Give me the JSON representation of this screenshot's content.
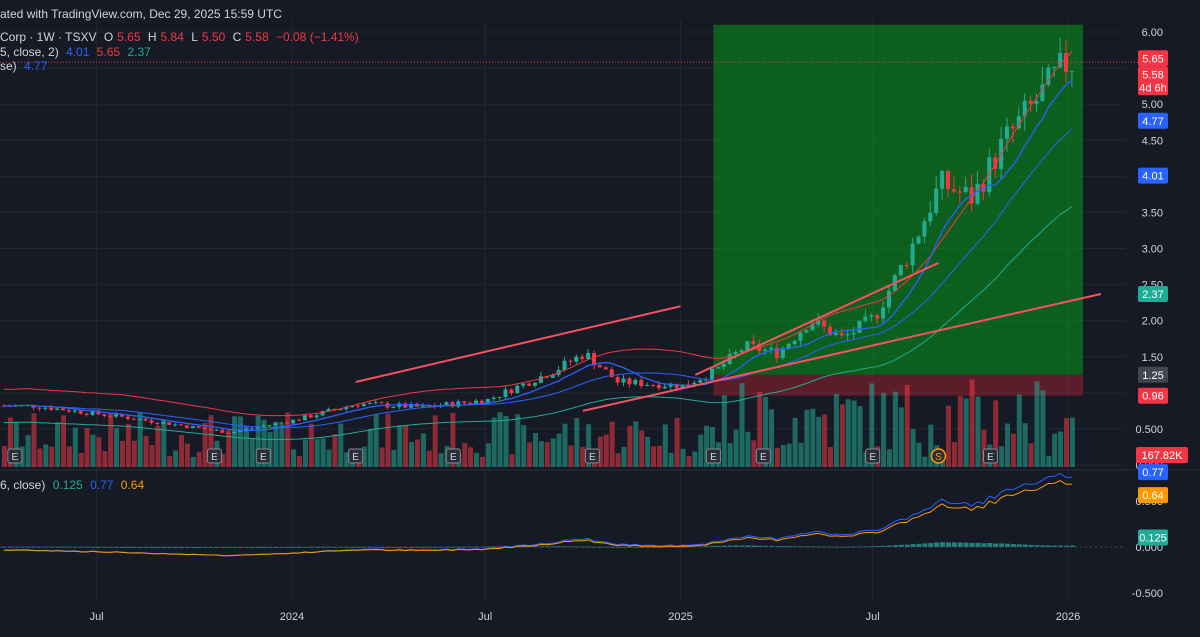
{
  "header": {
    "attribution": "ated with TradingView.com, Dec 29, 2025 15:59 UTC",
    "symbol": "Corp · 1W · TSXV",
    "open_label": "O",
    "open": "5.65",
    "high_label": "H",
    "high": "5.84",
    "low_label": "L",
    "low": "5.50",
    "close_label": "C",
    "close": "5.58",
    "change": "−0.08 (−1.41%)",
    "bb_label": "5, close, 2)",
    "bb_values": [
      "4.01",
      "5.65",
      "2.37"
    ],
    "ma_label": "se)",
    "ma_value": "4.77",
    "macd_label": "6, close)",
    "macd_values": [
      "0.125",
      "0.77",
      "0.64"
    ]
  },
  "colors": {
    "background": "#161a25",
    "up": "#22ab94",
    "down": "#f23645",
    "ma_blue": "#2962ff",
    "bb_red": "#f23645",
    "bb_teal": "#22ab94",
    "signal_orange": "#ff9800",
    "grid": "#232733"
  },
  "chart_data": [
    {
      "type": "candlestick",
      "title": "",
      "price_axis": {
        "ticks": [
          "6.00",
          "5.50",
          "5.00",
          "4.50",
          "4.00",
          "3.50",
          "3.00",
          "2.50",
          "2.00",
          "1.50",
          "1.00",
          "0.500",
          "0.000"
        ],
        "ylim": [
          0.0,
          6.15
        ]
      },
      "time_axis": {
        "ticks": [
          "Jul",
          "2024",
          "Jul",
          "2025",
          "Jul",
          "2026"
        ]
      },
      "last_price_labels": [
        "5.65",
        "5.58",
        "4d 6h"
      ],
      "price_labels": [
        "4.77",
        "4.01",
        "2.37",
        "1.25",
        "0.96"
      ],
      "volume_label": "167.82K",
      "earnings_markers": [
        "E",
        "E",
        "E",
        "E",
        "E",
        "E",
        "E",
        "E",
        "E",
        "S",
        "E"
      ],
      "ohlc_anchor_points": [
        {
          "date": "2023-05-01",
          "close": 0.82
        },
        {
          "date": "2023-08-01",
          "close": 0.65
        },
        {
          "date": "2023-11-01",
          "close": 0.45
        },
        {
          "date": "2024-01-01",
          "close": 0.62
        },
        {
          "date": "2024-03-01",
          "close": 0.85
        },
        {
          "date": "2024-05-01",
          "close": 0.8
        },
        {
          "date": "2024-07-01",
          "close": 0.9
        },
        {
          "date": "2024-09-01",
          "close": 1.3
        },
        {
          "date": "2024-10-01",
          "close": 1.55
        },
        {
          "date": "2024-11-01",
          "close": 1.15
        },
        {
          "date": "2025-01-01",
          "close": 1.1
        },
        {
          "date": "2025-02-01",
          "close": 1.3
        },
        {
          "date": "2025-03-01",
          "close": 1.65
        },
        {
          "date": "2025-04-01",
          "close": 1.55
        },
        {
          "date": "2025-05-01",
          "close": 2.0
        },
        {
          "date": "2025-06-01",
          "close": 1.75
        },
        {
          "date": "2025-07-01",
          "close": 2.05
        },
        {
          "date": "2025-08-01",
          "close": 2.9
        },
        {
          "date": "2025-09-01",
          "close": 3.9
        },
        {
          "date": "2025-10-01",
          "close": 3.7
        },
        {
          "date": "2025-11-01",
          "close": 4.5
        },
        {
          "date": "2025-12-29",
          "close": 5.58
        }
      ],
      "position_tool": {
        "entry": 1.25,
        "target": 6.1,
        "stop": 0.96
      },
      "trendlines": [
        {
          "from": {
            "date": "2024-03-01",
            "price": 1.15
          },
          "to": {
            "date": "2025-01-01",
            "price": 2.2
          }
        },
        {
          "from": {
            "date": "2024-10-01",
            "price": 0.75
          },
          "to": {
            "date": "2026-02-01",
            "price": 2.37
          }
        },
        {
          "from": {
            "date": "2025-01-15",
            "price": 1.25
          },
          "to": {
            "date": "2025-09-01",
            "price": 2.8
          }
        }
      ]
    },
    {
      "type": "macd",
      "axis_ticks": [
        "0.500",
        "0.000",
        "-0.500"
      ],
      "values": {
        "histogram": "0.125",
        "macd": "0.77",
        "signal": "0.64"
      }
    }
  ]
}
